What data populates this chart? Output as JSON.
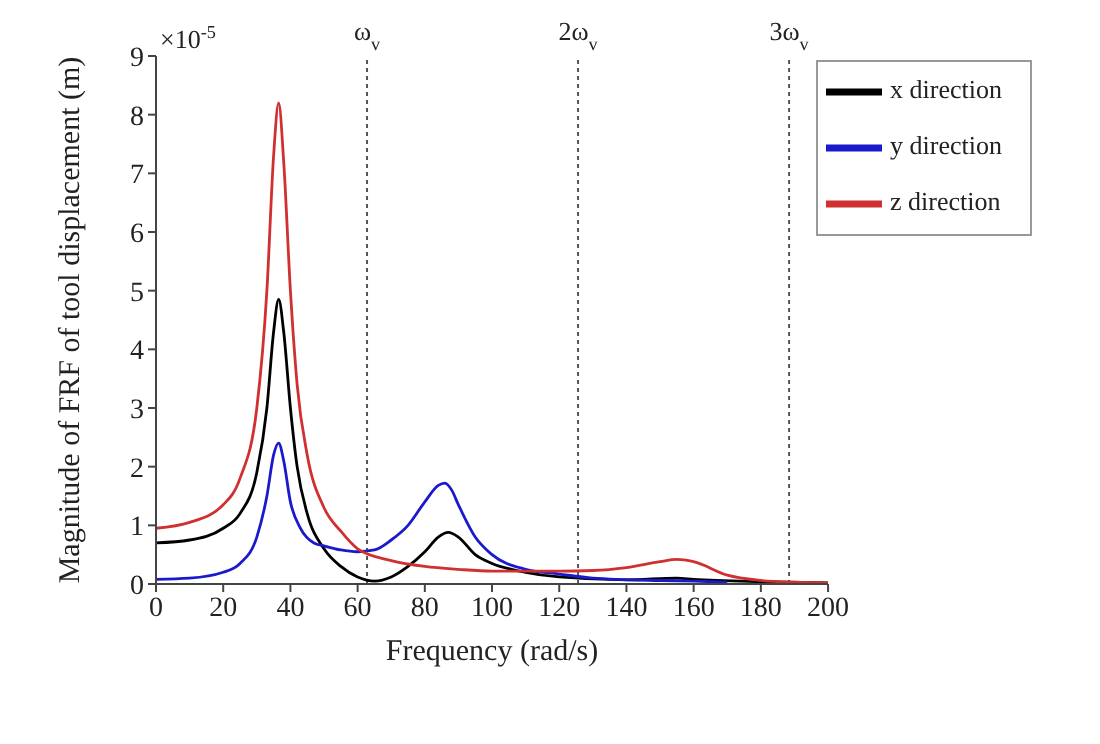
{
  "chart_data": {
    "type": "line",
    "xlabel": "Frequency (rad/s)",
    "ylabel": "Magnitude of FRF of tool displacement  (m)",
    "annotations": [
      "×10$^{-5}$"
    ],
    "xlim": [
      0,
      200
    ],
    "xticks": [
      0,
      20,
      40,
      60,
      80,
      100,
      120,
      140,
      160,
      180,
      200
    ],
    "ylim": [
      0,
      9
    ],
    "yticks": [
      0,
      1,
      2,
      3,
      4,
      5,
      6,
      7,
      8,
      9
    ],
    "grid": false,
    "legend": "top right",
    "marker": "none",
    "line_style": "solid",
    "ref_lines": [
      {
        "axis": "x",
        "value": 62.8,
        "label": "ω$_{v}$",
        "color": "#555555",
        "line_style": "dotted"
      },
      {
        "axis": "x",
        "value": 125.6,
        "label": "2ω$_{v}$",
        "color": "#555555",
        "line_style": "dotted"
      },
      {
        "axis": "x",
        "value": 188.4,
        "label": "3ω$_{v}$",
        "color": "#555555",
        "line_style": "dotted"
      }
    ],
    "series": [
      {
        "name": "x direction",
        "color": "#000000",
        "x": [
          0,
          10,
          20,
          25,
          30,
          33,
          35,
          36.5,
          38,
          40,
          42,
          45,
          50,
          55,
          60,
          65,
          70,
          75,
          80,
          84,
          87,
          90,
          95,
          100,
          110,
          120,
          140,
          155,
          160,
          180,
          200
        ],
        "values": [
          0.7,
          0.75,
          0.95,
          1.2,
          1.9,
          3.0,
          4.3,
          4.85,
          4.3,
          3.0,
          2.0,
          1.2,
          0.6,
          0.3,
          0.12,
          0.05,
          0.12,
          0.3,
          0.55,
          0.8,
          0.88,
          0.8,
          0.5,
          0.35,
          0.2,
          0.12,
          0.07,
          0.1,
          0.08,
          0.04,
          0.02
        ]
      },
      {
        "name": "y direction",
        "color": "#1a1acc",
        "x": [
          0,
          10,
          20,
          25,
          30,
          33,
          35,
          36.5,
          38,
          40,
          43,
          47,
          50,
          55,
          60,
          65,
          70,
          75,
          80,
          84,
          86,
          88,
          90,
          95,
          100,
          110,
          120,
          130,
          150,
          160,
          170
        ],
        "values": [
          0.08,
          0.1,
          0.2,
          0.35,
          0.8,
          1.5,
          2.2,
          2.4,
          2.1,
          1.4,
          0.95,
          0.7,
          0.65,
          0.58,
          0.55,
          0.58,
          0.75,
          1.0,
          1.4,
          1.68,
          1.72,
          1.6,
          1.35,
          0.8,
          0.5,
          0.25,
          0.17,
          0.1,
          0.06,
          0.05,
          0.03
        ]
      },
      {
        "name": "z direction",
        "color": "#d03030",
        "x": [
          0,
          10,
          20,
          25,
          30,
          33,
          35,
          36.5,
          38,
          40,
          42,
          45,
          50,
          55,
          60,
          70,
          80,
          90,
          100,
          120,
          130,
          140,
          150,
          155,
          160,
          170,
          180,
          190,
          200
        ],
        "values": [
          0.95,
          1.05,
          1.35,
          1.8,
          3.0,
          5.0,
          7.3,
          8.2,
          7.2,
          5.0,
          3.4,
          2.2,
          1.3,
          0.9,
          0.6,
          0.4,
          0.3,
          0.25,
          0.22,
          0.22,
          0.23,
          0.28,
          0.38,
          0.42,
          0.38,
          0.15,
          0.06,
          0.03,
          0.02
        ]
      }
    ]
  }
}
